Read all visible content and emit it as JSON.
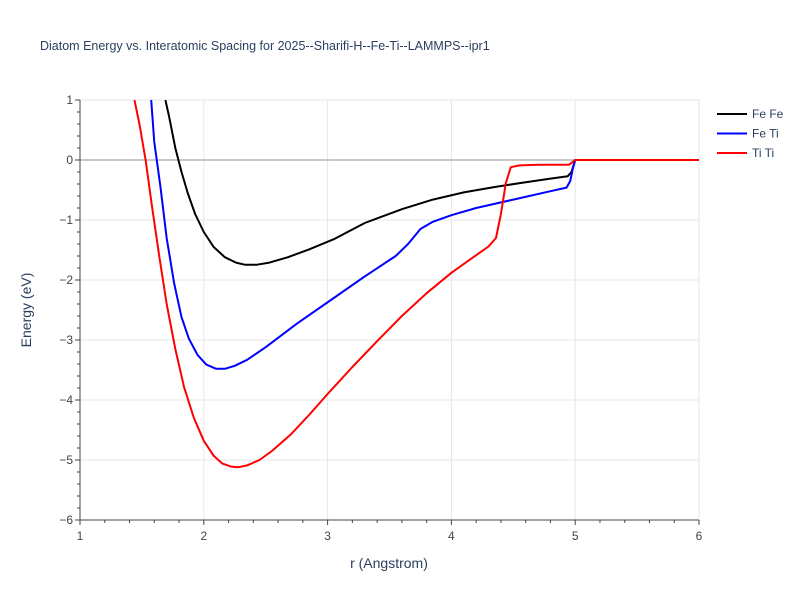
{
  "chart_data": {
    "type": "line",
    "title": "Diatom Energy vs. Interatomic Spacing for 2025--Sharifi-H--Fe-Ti--LAMMPS--ipr1",
    "xlabel": "r (Angstrom)",
    "ylabel": "Energy (eV)",
    "xlim": [
      1,
      6
    ],
    "ylim": [
      -6,
      1
    ],
    "xticks": [
      "1",
      "2",
      "3",
      "4",
      "5",
      "6"
    ],
    "yticks": [
      "1",
      "0",
      "−1",
      "−2",
      "−3",
      "−4",
      "−5",
      "−6"
    ],
    "grid": true,
    "legend_position": "top-right",
    "series": [
      {
        "name": "Fe Fe",
        "color": "#000000",
        "x": [
          1.69,
          1.72,
          1.77,
          1.82,
          1.87,
          1.93,
          2.0,
          2.08,
          2.17,
          2.26,
          2.33,
          2.43,
          2.53,
          2.68,
          2.85,
          3.05,
          3.3,
          3.6,
          3.85,
          4.1,
          4.35,
          4.6,
          4.8,
          4.94,
          4.97,
          5.0,
          5.5,
          6.0
        ],
        "y": [
          1.0,
          0.72,
          0.2,
          -0.2,
          -0.55,
          -0.9,
          -1.2,
          -1.45,
          -1.62,
          -1.71,
          -1.745,
          -1.745,
          -1.71,
          -1.62,
          -1.49,
          -1.32,
          -1.05,
          -0.82,
          -0.66,
          -0.54,
          -0.45,
          -0.37,
          -0.31,
          -0.27,
          -0.2,
          0.0,
          0.0,
          0.0
        ]
      },
      {
        "name": "Fe Ti",
        "color": "#0000ff",
        "x": [
          1.575,
          1.6,
          1.65,
          1.7,
          1.76,
          1.82,
          1.88,
          1.95,
          2.02,
          2.1,
          2.17,
          2.25,
          2.35,
          2.5,
          2.75,
          3.05,
          3.3,
          3.55,
          3.65,
          3.75,
          3.85,
          4.0,
          4.2,
          4.5,
          4.8,
          4.93,
          4.96,
          4.98,
          5.0,
          5.5,
          6.0
        ],
        "y": [
          1.0,
          0.3,
          -0.45,
          -1.3,
          -2.05,
          -2.62,
          -2.98,
          -3.25,
          -3.41,
          -3.48,
          -3.48,
          -3.43,
          -3.33,
          -3.12,
          -2.73,
          -2.3,
          -1.94,
          -1.6,
          -1.4,
          -1.15,
          -1.03,
          -0.92,
          -0.8,
          -0.66,
          -0.52,
          -0.46,
          -0.35,
          -0.15,
          0.0,
          0.0,
          0.0
        ]
      },
      {
        "name": "Ti Ti",
        "color": "#ff0000",
        "x": [
          1.44,
          1.48,
          1.53,
          1.58,
          1.64,
          1.7,
          1.77,
          1.84,
          1.92,
          2.0,
          2.08,
          2.15,
          2.22,
          2.28,
          2.35,
          2.45,
          2.55,
          2.7,
          2.85,
          3.0,
          3.2,
          3.4,
          3.6,
          3.8,
          4.0,
          4.15,
          4.3,
          4.36,
          4.4,
          4.44,
          4.48,
          4.55,
          4.7,
          4.95,
          5.0,
          5.5,
          6.0
        ],
        "y": [
          1.0,
          0.6,
          0.0,
          -0.75,
          -1.6,
          -2.4,
          -3.15,
          -3.78,
          -4.3,
          -4.68,
          -4.93,
          -5.06,
          -5.11,
          -5.12,
          -5.09,
          -5.0,
          -4.85,
          -4.58,
          -4.25,
          -3.9,
          -3.45,
          -3.02,
          -2.6,
          -2.22,
          -1.88,
          -1.66,
          -1.44,
          -1.3,
          -0.9,
          -0.38,
          -0.12,
          -0.09,
          -0.08,
          -0.08,
          0.0,
          0.0,
          0.0
        ]
      }
    ]
  }
}
